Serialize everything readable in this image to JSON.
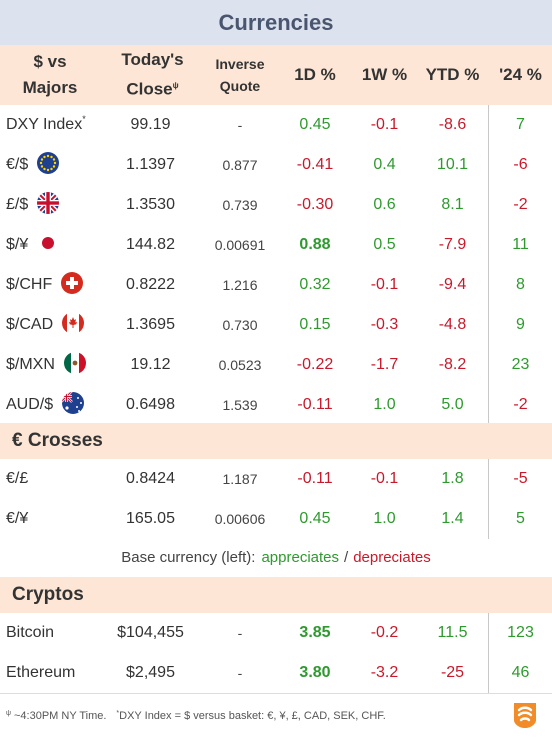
{
  "title": "Currencies",
  "header": {
    "col_name": [
      "$ vs",
      "Majors"
    ],
    "col_close": [
      "Today's",
      "Close"
    ],
    "col_close_sup": "ψ",
    "col_inverse": [
      "Inverse",
      "Quote"
    ],
    "col_1d": "1D %",
    "col_1w": "1W %",
    "col_ytd": "YTD %",
    "col_24": "'24 %"
  },
  "majors": [
    {
      "name": "DXY Index",
      "sup": "*",
      "flag": "",
      "close": "99.19",
      "inverse": "-",
      "d1": "0.45",
      "w1": "-0.1",
      "ytd": "-8.6",
      "y24": "7"
    },
    {
      "name": "€/$",
      "sup": "",
      "flag": "eu-flag-icon",
      "close": "1.1397",
      "inverse": "0.877",
      "d1": "-0.41",
      "w1": "0.4",
      "ytd": "10.1",
      "y24": "-6"
    },
    {
      "name": "£/$",
      "sup": "",
      "flag": "uk-flag-icon",
      "close": "1.3530",
      "inverse": "0.739",
      "d1": "-0.30",
      "w1": "0.6",
      "ytd": "8.1",
      "y24": "-2"
    },
    {
      "name": "$/¥",
      "sup": "",
      "flag": "japan-flag-icon",
      "close": "144.82",
      "inverse": "0.00691",
      "d1": "0.88",
      "w1": "0.5",
      "ytd": "-7.9",
      "y24": "11"
    },
    {
      "name": "$/CHF",
      "sup": "",
      "flag": "swiss-flag-icon",
      "close": "0.8222",
      "inverse": "1.216",
      "d1": "0.32",
      "w1": "-0.1",
      "ytd": "-9.4",
      "y24": "8"
    },
    {
      "name": "$/CAD",
      "sup": "",
      "flag": "canada-flag-icon",
      "close": "1.3695",
      "inverse": "0.730",
      "d1": "0.15",
      "w1": "-0.3",
      "ytd": "-4.8",
      "y24": "9"
    },
    {
      "name": "$/MXN",
      "sup": "",
      "flag": "mexico-flag-icon",
      "close": "19.12",
      "inverse": "0.0523",
      "d1": "-0.22",
      "w1": "-1.7",
      "ytd": "-8.2",
      "y24": "23"
    },
    {
      "name": "AUD/$",
      "sup": "",
      "flag": "australia-flag-icon",
      "close": "0.6498",
      "inverse": "1.539",
      "d1": "-0.11",
      "w1": "1.0",
      "ytd": "5.0",
      "y24": "-2"
    }
  ],
  "crosses_title": "€ Crosses",
  "crosses": [
    {
      "name": "€/£",
      "close": "0.8424",
      "inverse": "1.187",
      "d1": "-0.11",
      "w1": "-0.1",
      "ytd": "1.8",
      "y24": "-5"
    },
    {
      "name": "€/¥",
      "close": "165.05",
      "inverse": "0.00606",
      "d1": "0.45",
      "w1": "1.0",
      "ytd": "1.4",
      "y24": "5"
    }
  ],
  "base_note": {
    "prefix": "Base currency (left):",
    "appreciates": "appreciates",
    "slash": "/",
    "depreciates": "depreciates"
  },
  "cryptos_title": "Cryptos",
  "cryptos": [
    {
      "name": "Bitcoin",
      "close": "$104,455",
      "inverse": "-",
      "d1": "3.85",
      "w1": "-0.2",
      "ytd": "11.5",
      "y24": "123"
    },
    {
      "name": "Ethereum",
      "close": "$2,495",
      "inverse": "-",
      "d1": "3.80",
      "w1": "-3.2",
      "ytd": "-25",
      "y24": "46"
    }
  ],
  "footer": {
    "sym1": "ψ",
    "note1": "~4:30PM NY Time.",
    "sym2": "*",
    "note2": "DXY Index = $ versus basket: €, ¥, £, CAD, SEK, CHF."
  },
  "colors": {
    "positive": "#2e9a2e",
    "negative": "#c8192b",
    "title_bg": "#dde3ee",
    "header_bg": "#fde6d6",
    "logo": "#f28c28"
  }
}
